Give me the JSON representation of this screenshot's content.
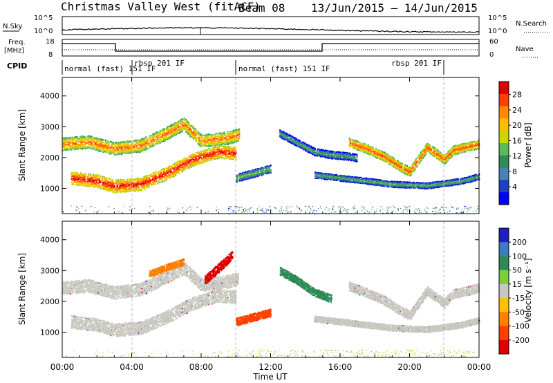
{
  "header": {
    "station": "Christmas Valley West (fitACF)",
    "beam": "Beam 08",
    "date_range": "13/Jun/2015 – 14/Jun/2015"
  },
  "top_panel": {
    "left_label": "N.Sky",
    "right_label": "N.Search",
    "left_ticks": [
      "10^5",
      "10^0"
    ],
    "right_ticks": [
      "10^5",
      "10^0"
    ]
  },
  "freq_panel": {
    "left_label_1": "Freq.",
    "left_label_2": "[MHz]",
    "right_label": "Nave",
    "left_ticks": [
      "18",
      "8"
    ],
    "right_ticks": [
      "60",
      "0"
    ]
  },
  "cpid": {
    "label": "CPID",
    "segments": [
      {
        "label": "normal (fast) 151 IF"
      },
      {
        "label": "rbsp 201 IF"
      },
      {
        "label": "normal (fast) 151 IF"
      },
      {
        "label": "rbsp 201 IF"
      }
    ]
  },
  "power_scale": {
    "title": "Power [dB]",
    "ticks": [
      "28",
      "24",
      "20",
      "16",
      "12",
      "8",
      "4"
    ],
    "colors": [
      "#e00000",
      "#ff4000",
      "#ff8c00",
      "#ffbf00",
      "#c8d800",
      "#5cb85c",
      "#2e8b57",
      "#4682b4",
      "#1f3fbf",
      "#0000ff"
    ]
  },
  "velocity_scale": {
    "title": "Velocity [m s⁻¹]",
    "ticks": [
      "200",
      "100",
      "50",
      "15",
      "-15",
      "-50",
      "-100",
      "-200"
    ],
    "colors": [
      "#2020c0",
      "#3c7cc0",
      "#2e8b57",
      "#7ccd3c",
      "#c8c8c0",
      "#ffc000",
      "#ff8000",
      "#ff4000",
      "#e00000"
    ]
  },
  "chart_data": [
    {
      "type": "heatmap",
      "title": "Power",
      "xlabel": "Time UT",
      "ylabel": "Slant Range [km]",
      "x_ticks": [
        "00:00",
        "04:00",
        "08:00",
        "12:00",
        "16:00",
        "20:00",
        "00:00"
      ],
      "xlim": [
        0,
        24
      ],
      "y_ticks": [
        "1000",
        "2000",
        "3000",
        "4000"
      ],
      "ylim": [
        180,
        4600
      ],
      "colorbar": "Power [dB]",
      "clim": [
        0,
        32
      ],
      "bands": [
        {
          "x": [
            0.0,
            1.5,
            3.0,
            4.5,
            6.0,
            7.0,
            8.0,
            9.5,
            10.2
          ],
          "y": [
            2450,
            2520,
            2300,
            2400,
            2800,
            3100,
            2550,
            2650,
            2750
          ],
          "width": 420,
          "power": 22
        },
        {
          "x": [
            0.5,
            2.0,
            3.0,
            4.5,
            6.0,
            7.5,
            9.0,
            10.0
          ],
          "y": [
            1350,
            1250,
            1080,
            1150,
            1500,
            1950,
            2200,
            2150
          ],
          "width": 420,
          "power": 26
        },
        {
          "x": [
            10.0,
            11.0,
            12.0
          ],
          "y": [
            1350,
            1500,
            1650
          ],
          "width": 260,
          "power": 12
        },
        {
          "x": [
            12.5,
            13.5,
            14.5,
            15.5,
            16.5,
            17.0
          ],
          "y": [
            2800,
            2500,
            2200,
            2100,
            2050,
            2000
          ],
          "width": 250,
          "power": 10
        },
        {
          "x": [
            16.5,
            17.5,
            18.5,
            19.5,
            20.0,
            21.0,
            22.0,
            22.5,
            24.0
          ],
          "y": [
            2500,
            2300,
            2050,
            1700,
            1550,
            2350,
            1950,
            2250,
            2450
          ],
          "width": 300,
          "power": 23
        },
        {
          "x": [
            14.5,
            16.0,
            17.5,
            19.0,
            21.0,
            23.0,
            24.0
          ],
          "y": [
            1450,
            1350,
            1250,
            1150,
            1100,
            1250,
            1400
          ],
          "width": 200,
          "power": 11
        }
      ]
    },
    {
      "type": "heatmap",
      "title": "Velocity",
      "xlabel": "Time UT",
      "ylabel": "Slant Range [km]",
      "x_ticks": [
        "00:00",
        "04:00",
        "08:00",
        "12:00",
        "16:00",
        "20:00",
        "00:00"
      ],
      "xlim": [
        0,
        24
      ],
      "y_ticks": [
        "1000",
        "2000",
        "3000",
        "4000"
      ],
      "ylim": [
        180,
        4600
      ],
      "colorbar": "Velocity [m s⁻¹]",
      "clim": [
        -250,
        250
      ],
      "bands": [
        {
          "x": [
            0.0,
            1.5,
            3.0,
            4.5,
            6.0,
            7.0,
            8.0,
            9.5,
            10.2
          ],
          "y": [
            2450,
            2520,
            2300,
            2400,
            2800,
            3100,
            2550,
            2650,
            2750
          ],
          "width": 420,
          "velocity": 0
        },
        {
          "x": [
            0.5,
            2.0,
            3.0,
            4.5,
            6.0,
            7.5,
            9.0,
            10.0
          ],
          "y": [
            1350,
            1250,
            1080,
            1150,
            1500,
            1950,
            2200,
            2150
          ],
          "width": 420,
          "velocity": 0
        },
        {
          "x": [
            8.2,
            8.8,
            9.4,
            9.8
          ],
          "y": [
            2700,
            3000,
            3300,
            3550
          ],
          "width": 300,
          "velocity": -210
        },
        {
          "x": [
            5.0,
            6.2,
            7.0
          ],
          "y": [
            2900,
            3150,
            3300
          ],
          "width": 220,
          "velocity": -40
        },
        {
          "x": [
            10.0,
            11.0,
            12.0
          ],
          "y": [
            1350,
            1500,
            1650
          ],
          "width": 260,
          "velocity": -120
        },
        {
          "x": [
            12.5,
            13.5,
            14.5,
            15.5
          ],
          "y": [
            3000,
            2700,
            2300,
            2100
          ],
          "width": 260,
          "velocity": 40
        },
        {
          "x": [
            16.5,
            17.5,
            18.5,
            19.5,
            20.0,
            21.0,
            22.0,
            22.5,
            24.0
          ],
          "y": [
            2500,
            2300,
            2050,
            1700,
            1550,
            2350,
            1950,
            2250,
            2450
          ],
          "width": 300,
          "velocity": 0
        },
        {
          "x": [
            14.5,
            16.0,
            17.5,
            19.0,
            21.0,
            23.0,
            24.0
          ],
          "y": [
            1450,
            1350,
            1250,
            1150,
            1100,
            1250,
            1400
          ],
          "width": 200,
          "velocity": 0
        }
      ]
    }
  ]
}
